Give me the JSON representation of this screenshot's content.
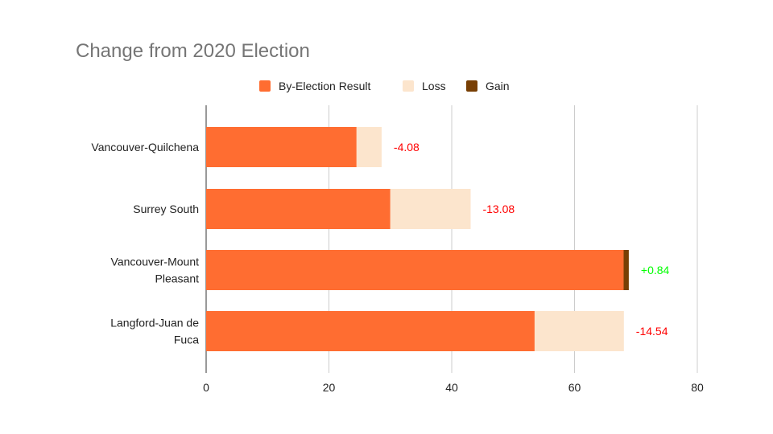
{
  "chart_data": {
    "type": "bar",
    "orientation": "horizontal",
    "stacked": true,
    "title": "Change from 2020 Election",
    "categories": [
      [
        "Vancouver-Quilchena"
      ],
      [
        "Surrey South"
      ],
      [
        "Vancouver-Mount",
        "Pleasant"
      ],
      [
        "Langford-Juan de",
        "Fuca"
      ]
    ],
    "series": [
      {
        "name": "By-Election Result",
        "color": "#ff6d31",
        "values": [
          24.5,
          30.0,
          68.0,
          53.5
        ]
      },
      {
        "name": "Loss",
        "color": "#fce5cd",
        "values": [
          4.08,
          13.08,
          0,
          14.54
        ]
      },
      {
        "name": "Gain",
        "color": "#783f04",
        "values": [
          0,
          0,
          0.84,
          0
        ]
      }
    ],
    "data_labels": [
      "-4.08",
      "-13.08",
      "+0.84",
      "-14.54"
    ],
    "data_label_colors": [
      "#ff0000",
      "#ff0000",
      "#00ff00",
      "#ff0000"
    ],
    "x_ticks": [
      "0",
      "20",
      "40",
      "60",
      "80"
    ],
    "xlim": [
      0,
      80
    ],
    "grid": true,
    "legend_position": "top"
  }
}
